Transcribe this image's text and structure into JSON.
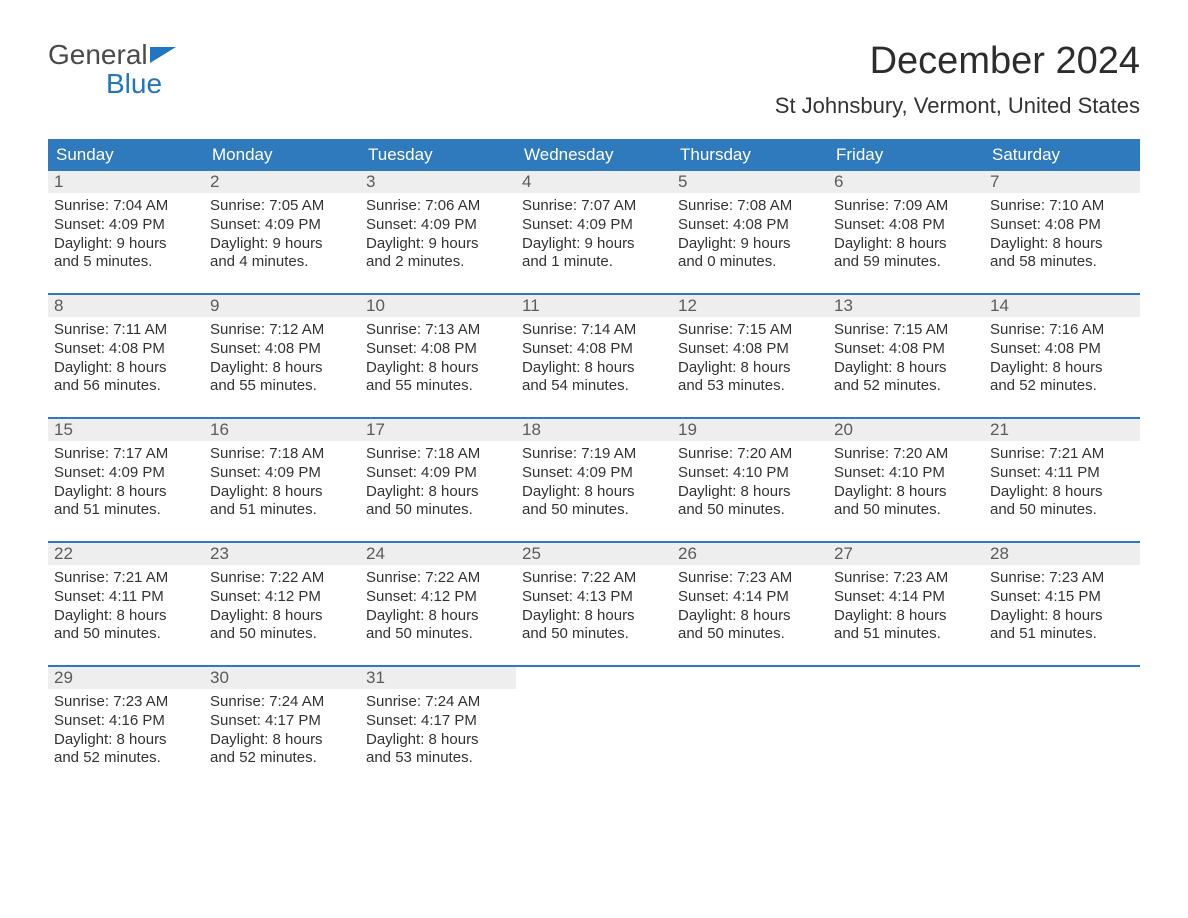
{
  "logo": {
    "word1": "General",
    "word2": "Blue"
  },
  "title": "December 2024",
  "location": "St Johnsbury, Vermont, United States",
  "colors": {
    "header_bg": "#2f79bd",
    "header_text": "#ffffff",
    "daynum_bg": "#eeeeee",
    "daynum_text": "#5b5b5b",
    "body_text": "#333333",
    "week_border": "#2f79bd",
    "logo_gray": "#4a4a4a",
    "logo_blue": "#2076c0"
  },
  "daynames": [
    "Sunday",
    "Monday",
    "Tuesday",
    "Wednesday",
    "Thursday",
    "Friday",
    "Saturday"
  ],
  "labels": {
    "sunrise": "Sunrise:",
    "sunset": "Sunset:",
    "daylight": "Daylight:"
  },
  "weeks": [
    [
      {
        "n": "1",
        "sunrise": "7:04 AM",
        "sunset": "4:09 PM",
        "daylight1": "9 hours",
        "daylight2": "and 5 minutes."
      },
      {
        "n": "2",
        "sunrise": "7:05 AM",
        "sunset": "4:09 PM",
        "daylight1": "9 hours",
        "daylight2": "and 4 minutes."
      },
      {
        "n": "3",
        "sunrise": "7:06 AM",
        "sunset": "4:09 PM",
        "daylight1": "9 hours",
        "daylight2": "and 2 minutes."
      },
      {
        "n": "4",
        "sunrise": "7:07 AM",
        "sunset": "4:09 PM",
        "daylight1": "9 hours",
        "daylight2": "and 1 minute."
      },
      {
        "n": "5",
        "sunrise": "7:08 AM",
        "sunset": "4:08 PM",
        "daylight1": "9 hours",
        "daylight2": "and 0 minutes."
      },
      {
        "n": "6",
        "sunrise": "7:09 AM",
        "sunset": "4:08 PM",
        "daylight1": "8 hours",
        "daylight2": "and 59 minutes."
      },
      {
        "n": "7",
        "sunrise": "7:10 AM",
        "sunset": "4:08 PM",
        "daylight1": "8 hours",
        "daylight2": "and 58 minutes."
      }
    ],
    [
      {
        "n": "8",
        "sunrise": "7:11 AM",
        "sunset": "4:08 PM",
        "daylight1": "8 hours",
        "daylight2": "and 56 minutes."
      },
      {
        "n": "9",
        "sunrise": "7:12 AM",
        "sunset": "4:08 PM",
        "daylight1": "8 hours",
        "daylight2": "and 55 minutes."
      },
      {
        "n": "10",
        "sunrise": "7:13 AM",
        "sunset": "4:08 PM",
        "daylight1": "8 hours",
        "daylight2": "and 55 minutes."
      },
      {
        "n": "11",
        "sunrise": "7:14 AM",
        "sunset": "4:08 PM",
        "daylight1": "8 hours",
        "daylight2": "and 54 minutes."
      },
      {
        "n": "12",
        "sunrise": "7:15 AM",
        "sunset": "4:08 PM",
        "daylight1": "8 hours",
        "daylight2": "and 53 minutes."
      },
      {
        "n": "13",
        "sunrise": "7:15 AM",
        "sunset": "4:08 PM",
        "daylight1": "8 hours",
        "daylight2": "and 52 minutes."
      },
      {
        "n": "14",
        "sunrise": "7:16 AM",
        "sunset": "4:08 PM",
        "daylight1": "8 hours",
        "daylight2": "and 52 minutes."
      }
    ],
    [
      {
        "n": "15",
        "sunrise": "7:17 AM",
        "sunset": "4:09 PM",
        "daylight1": "8 hours",
        "daylight2": "and 51 minutes."
      },
      {
        "n": "16",
        "sunrise": "7:18 AM",
        "sunset": "4:09 PM",
        "daylight1": "8 hours",
        "daylight2": "and 51 minutes."
      },
      {
        "n": "17",
        "sunrise": "7:18 AM",
        "sunset": "4:09 PM",
        "daylight1": "8 hours",
        "daylight2": "and 50 minutes."
      },
      {
        "n": "18",
        "sunrise": "7:19 AM",
        "sunset": "4:09 PM",
        "daylight1": "8 hours",
        "daylight2": "and 50 minutes."
      },
      {
        "n": "19",
        "sunrise": "7:20 AM",
        "sunset": "4:10 PM",
        "daylight1": "8 hours",
        "daylight2": "and 50 minutes."
      },
      {
        "n": "20",
        "sunrise": "7:20 AM",
        "sunset": "4:10 PM",
        "daylight1": "8 hours",
        "daylight2": "and 50 minutes."
      },
      {
        "n": "21",
        "sunrise": "7:21 AM",
        "sunset": "4:11 PM",
        "daylight1": "8 hours",
        "daylight2": "and 50 minutes."
      }
    ],
    [
      {
        "n": "22",
        "sunrise": "7:21 AM",
        "sunset": "4:11 PM",
        "daylight1": "8 hours",
        "daylight2": "and 50 minutes."
      },
      {
        "n": "23",
        "sunrise": "7:22 AM",
        "sunset": "4:12 PM",
        "daylight1": "8 hours",
        "daylight2": "and 50 minutes."
      },
      {
        "n": "24",
        "sunrise": "7:22 AM",
        "sunset": "4:12 PM",
        "daylight1": "8 hours",
        "daylight2": "and 50 minutes."
      },
      {
        "n": "25",
        "sunrise": "7:22 AM",
        "sunset": "4:13 PM",
        "daylight1": "8 hours",
        "daylight2": "and 50 minutes."
      },
      {
        "n": "26",
        "sunrise": "7:23 AM",
        "sunset": "4:14 PM",
        "daylight1": "8 hours",
        "daylight2": "and 50 minutes."
      },
      {
        "n": "27",
        "sunrise": "7:23 AM",
        "sunset": "4:14 PM",
        "daylight1": "8 hours",
        "daylight2": "and 51 minutes."
      },
      {
        "n": "28",
        "sunrise": "7:23 AM",
        "sunset": "4:15 PM",
        "daylight1": "8 hours",
        "daylight2": "and 51 minutes."
      }
    ],
    [
      {
        "n": "29",
        "sunrise": "7:23 AM",
        "sunset": "4:16 PM",
        "daylight1": "8 hours",
        "daylight2": "and 52 minutes."
      },
      {
        "n": "30",
        "sunrise": "7:24 AM",
        "sunset": "4:17 PM",
        "daylight1": "8 hours",
        "daylight2": "and 52 minutes."
      },
      {
        "n": "31",
        "sunrise": "7:24 AM",
        "sunset": "4:17 PM",
        "daylight1": "8 hours",
        "daylight2": "and 53 minutes."
      },
      {
        "empty": true
      },
      {
        "empty": true
      },
      {
        "empty": true
      },
      {
        "empty": true
      }
    ]
  ]
}
